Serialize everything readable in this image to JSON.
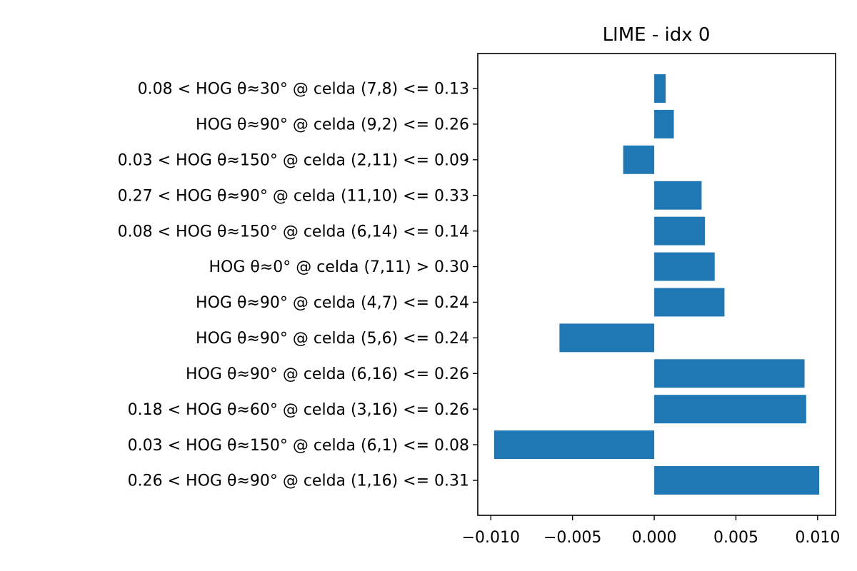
{
  "chart_data": {
    "type": "bar",
    "orientation": "horizontal",
    "title": "LIME - idx 0",
    "xlabel": "",
    "ylabel": "",
    "xlim": [
      -0.0108,
      0.0111
    ],
    "xticks": [
      -0.01,
      -0.005,
      0.0,
      0.005,
      0.01
    ],
    "xtick_labels": [
      "−0.010",
      "−0.005",
      "0.000",
      "0.005",
      "0.010"
    ],
    "grid": false,
    "bar_color": "#1f77b4",
    "categories": [
      "0.08 < HOG θ≈30° @ celda (7,8) <= 0.13",
      "HOG θ≈90° @ celda (9,2) <= 0.26",
      "0.03 < HOG θ≈150° @ celda (2,11) <= 0.09",
      "0.27 < HOG θ≈90° @ celda (11,10) <= 0.33",
      "0.08 < HOG θ≈150° @ celda (6,14) <= 0.14",
      "HOG θ≈0° @ celda (7,11) > 0.30",
      "HOG θ≈90° @ celda (4,7) <= 0.24",
      "HOG θ≈90° @ celda (5,6) <= 0.24",
      "HOG θ≈90° @ celda (6,16) <= 0.26",
      "0.18 < HOG θ≈60° @ celda (3,16) <= 0.26",
      "0.03 < HOG θ≈150° @ celda (6,1) <= 0.08",
      "0.26 < HOG θ≈90° @ celda (1,16) <= 0.31"
    ],
    "values": [
      0.0007,
      0.0012,
      -0.0019,
      0.0029,
      0.0031,
      0.0037,
      0.0043,
      -0.0058,
      0.0092,
      0.0093,
      -0.0098,
      0.0101
    ]
  }
}
